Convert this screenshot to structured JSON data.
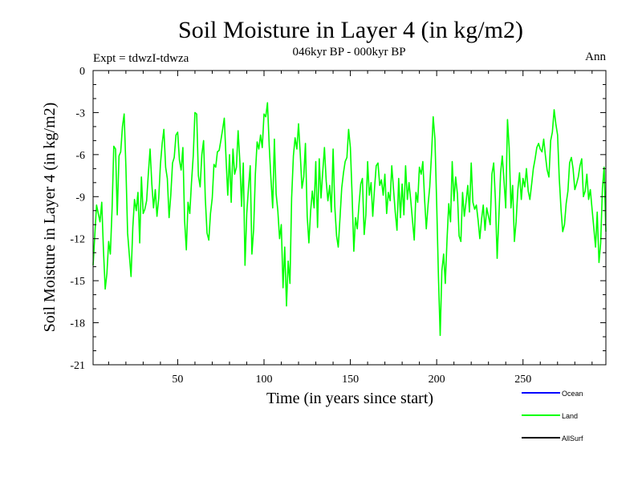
{
  "chart_data": {
    "type": "line",
    "title": "Soil Moisture in Layer 4 (in kg/m2)",
    "subtitle": "046kyr BP - 000kyr BP",
    "expt_label": "Expt = tdwzI-tdwza",
    "season_label": "Ann",
    "xlabel": "Time (in years since start)",
    "ylabel": "Soil Moisture in Layer 4 (in kg/m2)",
    "xlim": [
      1,
      298
    ],
    "ylim": [
      -21,
      0
    ],
    "x_ticks": [
      50,
      100,
      150,
      200,
      250
    ],
    "y_ticks": [
      0,
      -3,
      -6,
      -9,
      -12,
      -15,
      -18,
      -21
    ],
    "grid": false,
    "legend_position": "bottom-right",
    "series": [
      {
        "name": "Ocean",
        "color": "#0000ff",
        "points": []
      },
      {
        "name": "Land",
        "color": "#00ff00",
        "points": [
          [
            1,
            -13.9
          ],
          [
            3,
            -9.6
          ],
          [
            5,
            -10.8
          ],
          [
            6,
            -9.4
          ],
          [
            7,
            -12.8
          ],
          [
            8,
            -15.6
          ],
          [
            9,
            -14.5
          ],
          [
            10,
            -12.2
          ],
          [
            11,
            -13.1
          ],
          [
            12,
            -9.8
          ],
          [
            13,
            -5.4
          ],
          [
            14,
            -5.6
          ],
          [
            15,
            -10.3
          ],
          [
            16,
            -6.1
          ],
          [
            17,
            -5.8
          ],
          [
            18,
            -4.0
          ],
          [
            19,
            -3.1
          ],
          [
            20,
            -6.9
          ],
          [
            21,
            -11.6
          ],
          [
            22,
            -13.2
          ],
          [
            23,
            -14.7
          ],
          [
            24,
            -11.2
          ],
          [
            25,
            -9.2
          ],
          [
            26,
            -10.0
          ],
          [
            27,
            -8.7
          ],
          [
            28,
            -12.3
          ],
          [
            29,
            -7.6
          ],
          [
            30,
            -10.2
          ],
          [
            31,
            -9.9
          ],
          [
            32,
            -9.3
          ],
          [
            33,
            -7.4
          ],
          [
            34,
            -5.6
          ],
          [
            35,
            -8.1
          ],
          [
            36,
            -9.8
          ],
          [
            37,
            -8.5
          ],
          [
            38,
            -10.4
          ],
          [
            39,
            -9.1
          ],
          [
            40,
            -6.7
          ],
          [
            41,
            -5.2
          ],
          [
            42,
            -4.2
          ],
          [
            43,
            -6.9
          ],
          [
            44,
            -7.7
          ],
          [
            45,
            -10.5
          ],
          [
            46,
            -8.9
          ],
          [
            47,
            -6.6
          ],
          [
            48,
            -6.2
          ],
          [
            49,
            -4.6
          ],
          [
            50,
            -4.4
          ],
          [
            51,
            -6.4
          ],
          [
            52,
            -7.1
          ],
          [
            53,
            -5.5
          ],
          [
            54,
            -10.7
          ],
          [
            55,
            -12.8
          ],
          [
            56,
            -9.4
          ],
          [
            57,
            -10.2
          ],
          [
            58,
            -8.0
          ],
          [
            59,
            -6.1
          ],
          [
            60,
            -3.0
          ],
          [
            61,
            -3.1
          ],
          [
            62,
            -7.5
          ],
          [
            63,
            -8.3
          ],
          [
            64,
            -6.0
          ],
          [
            65,
            -5.0
          ],
          [
            66,
            -9.1
          ],
          [
            67,
            -11.6
          ],
          [
            68,
            -12.1
          ],
          [
            69,
            -10.2
          ],
          [
            70,
            -9.1
          ],
          [
            71,
            -6.7
          ],
          [
            72,
            -6.9
          ],
          [
            73,
            -5.8
          ],
          [
            74,
            -5.7
          ],
          [
            75,
            -5.0
          ],
          [
            76,
            -4.2
          ],
          [
            77,
            -3.4
          ],
          [
            78,
            -6.3
          ],
          [
            79,
            -8.9
          ],
          [
            80,
            -6.0
          ],
          [
            81,
            -9.4
          ],
          [
            82,
            -5.6
          ],
          [
            83,
            -7.4
          ],
          [
            84,
            -6.9
          ],
          [
            85,
            -4.3
          ],
          [
            86,
            -6.5
          ],
          [
            87,
            -9.7
          ],
          [
            88,
            -6.6
          ],
          [
            89,
            -13.9
          ],
          [
            90,
            -10.2
          ],
          [
            91,
            -8.4
          ],
          [
            92,
            -6.8
          ],
          [
            93,
            -13.1
          ],
          [
            94,
            -11.3
          ],
          [
            95,
            -7.4
          ],
          [
            96,
            -5.1
          ],
          [
            97,
            -5.6
          ],
          [
            98,
            -4.6
          ],
          [
            99,
            -5.5
          ],
          [
            100,
            -3.1
          ],
          [
            101,
            -3.3
          ],
          [
            102,
            -2.3
          ],
          [
            103,
            -5.4
          ],
          [
            104,
            -7.7
          ],
          [
            105,
            -9.8
          ],
          [
            106,
            -4.9
          ],
          [
            107,
            -8.8
          ],
          [
            108,
            -10.0
          ],
          [
            109,
            -12.0
          ],
          [
            110,
            -11.0
          ],
          [
            111,
            -15.5
          ],
          [
            112,
            -12.6
          ],
          [
            113,
            -16.8
          ],
          [
            114,
            -13.6
          ],
          [
            115,
            -15.2
          ],
          [
            116,
            -9.1
          ],
          [
            117,
            -6.1
          ],
          [
            118,
            -4.8
          ],
          [
            119,
            -5.6
          ],
          [
            120,
            -3.8
          ],
          [
            121,
            -6.0
          ],
          [
            122,
            -8.4
          ],
          [
            123,
            -7.6
          ],
          [
            124,
            -5.2
          ],
          [
            125,
            -10.4
          ],
          [
            126,
            -12.3
          ],
          [
            127,
            -10.0
          ],
          [
            128,
            -8.6
          ],
          [
            129,
            -9.8
          ],
          [
            130,
            -6.5
          ],
          [
            131,
            -11.2
          ],
          [
            132,
            -6.3
          ],
          [
            133,
            -9.1
          ],
          [
            134,
            -7.2
          ],
          [
            135,
            -5.5
          ],
          [
            136,
            -7.9
          ],
          [
            137,
            -9.3
          ],
          [
            138,
            -8.2
          ],
          [
            139,
            -10.1
          ],
          [
            140,
            -5.6
          ],
          [
            141,
            -9.7
          ],
          [
            142,
            -11.8
          ],
          [
            143,
            -12.6
          ],
          [
            144,
            -10.5
          ],
          [
            145,
            -8.4
          ],
          [
            146,
            -7.3
          ],
          [
            147,
            -6.5
          ],
          [
            148,
            -6.2
          ],
          [
            149,
            -4.2
          ],
          [
            150,
            -5.5
          ],
          [
            151,
            -8.8
          ],
          [
            152,
            -12.9
          ],
          [
            153,
            -10.5
          ],
          [
            154,
            -11.3
          ],
          [
            155,
            -9.6
          ],
          [
            156,
            -8.1
          ],
          [
            157,
            -7.7
          ],
          [
            158,
            -11.7
          ],
          [
            159,
            -10.3
          ],
          [
            160,
            -6.5
          ],
          [
            161,
            -8.9
          ],
          [
            162,
            -8.0
          ],
          [
            163,
            -10.4
          ],
          [
            164,
            -8.4
          ],
          [
            165,
            -6.8
          ],
          [
            166,
            -6.6
          ],
          [
            167,
            -8.2
          ],
          [
            168,
            -7.8
          ],
          [
            169,
            -8.9
          ],
          [
            170,
            -7.4
          ],
          [
            171,
            -10.2
          ],
          [
            172,
            -8.7
          ],
          [
            173,
            -9.3
          ],
          [
            174,
            -6.8
          ],
          [
            175,
            -8.5
          ],
          [
            176,
            -10.1
          ],
          [
            177,
            -11.4
          ],
          [
            178,
            -7.7
          ],
          [
            179,
            -10.5
          ],
          [
            180,
            -8.1
          ],
          [
            181,
            -10.3
          ],
          [
            182,
            -6.8
          ],
          [
            183,
            -9.2
          ],
          [
            184,
            -8.0
          ],
          [
            185,
            -9.3
          ],
          [
            186,
            -10.7
          ],
          [
            187,
            -12.1
          ],
          [
            188,
            -8.7
          ],
          [
            189,
            -9.4
          ],
          [
            190,
            -6.9
          ],
          [
            191,
            -7.4
          ],
          [
            192,
            -6.5
          ],
          [
            193,
            -9.2
          ],
          [
            194,
            -11.3
          ],
          [
            195,
            -9.6
          ],
          [
            196,
            -8.3
          ],
          [
            197,
            -6.0
          ],
          [
            198,
            -3.3
          ],
          [
            199,
            -4.9
          ],
          [
            200,
            -9.6
          ],
          [
            201,
            -14.6
          ],
          [
            202,
            -18.9
          ],
          [
            203,
            -14.3
          ],
          [
            204,
            -13.1
          ],
          [
            205,
            -15.2
          ],
          [
            206,
            -12.0
          ],
          [
            207,
            -9.5
          ],
          [
            208,
            -10.8
          ],
          [
            209,
            -6.5
          ],
          [
            210,
            -9.3
          ],
          [
            211,
            -7.6
          ],
          [
            212,
            -8.8
          ],
          [
            213,
            -11.8
          ],
          [
            214,
            -12.2
          ],
          [
            215,
            -8.7
          ],
          [
            216,
            -10.4
          ],
          [
            217,
            -9.4
          ],
          [
            218,
            -8.2
          ],
          [
            219,
            -10.1
          ],
          [
            220,
            -6.6
          ],
          [
            221,
            -9.4
          ],
          [
            222,
            -9.9
          ],
          [
            223,
            -9.6
          ],
          [
            224,
            -10.7
          ],
          [
            225,
            -12.0
          ],
          [
            226,
            -10.6
          ],
          [
            227,
            -9.6
          ],
          [
            228,
            -11.4
          ],
          [
            229,
            -9.8
          ],
          [
            230,
            -10.4
          ],
          [
            231,
            -11.0
          ],
          [
            232,
            -7.4
          ],
          [
            233,
            -6.6
          ],
          [
            234,
            -9.2
          ],
          [
            235,
            -13.4
          ],
          [
            236,
            -10.5
          ],
          [
            237,
            -7.3
          ],
          [
            238,
            -6.1
          ],
          [
            239,
            -7.9
          ],
          [
            240,
            -9.8
          ],
          [
            241,
            -3.5
          ],
          [
            242,
            -5.5
          ],
          [
            243,
            -9.8
          ],
          [
            244,
            -8.2
          ],
          [
            245,
            -12.2
          ],
          [
            246,
            -10.8
          ],
          [
            247,
            -8.5
          ],
          [
            248,
            -7.3
          ],
          [
            249,
            -9.2
          ],
          [
            250,
            -7.7
          ],
          [
            251,
            -8.3
          ],
          [
            252,
            -7.0
          ],
          [
            253,
            -8.6
          ],
          [
            254,
            -9.2
          ],
          [
            255,
            -8.1
          ],
          [
            256,
            -7.0
          ],
          [
            257,
            -6.3
          ],
          [
            258,
            -5.5
          ],
          [
            259,
            -5.2
          ],
          [
            260,
            -5.6
          ],
          [
            261,
            -5.8
          ],
          [
            262,
            -4.9
          ],
          [
            263,
            -6.1
          ],
          [
            264,
            -7.1
          ],
          [
            265,
            -7.6
          ],
          [
            266,
            -5.0
          ],
          [
            267,
            -4.4
          ],
          [
            268,
            -2.8
          ],
          [
            269,
            -3.8
          ],
          [
            270,
            -4.6
          ],
          [
            271,
            -7.7
          ],
          [
            272,
            -9.9
          ],
          [
            273,
            -11.5
          ],
          [
            274,
            -11.0
          ],
          [
            275,
            -9.5
          ],
          [
            276,
            -8.6
          ],
          [
            277,
            -6.6
          ],
          [
            278,
            -6.2
          ],
          [
            279,
            -7.0
          ],
          [
            280,
            -8.5
          ],
          [
            281,
            -8.1
          ],
          [
            282,
            -7.6
          ],
          [
            283,
            -6.8
          ],
          [
            284,
            -6.3
          ],
          [
            285,
            -9.0
          ],
          [
            286,
            -8.6
          ],
          [
            287,
            -7.4
          ],
          [
            288,
            -9.2
          ],
          [
            289,
            -8.5
          ],
          [
            290,
            -9.9
          ],
          [
            291,
            -11.2
          ],
          [
            292,
            -12.6
          ],
          [
            293,
            -10.1
          ],
          [
            294,
            -13.7
          ],
          [
            295,
            -12.3
          ],
          [
            296,
            -8.4
          ],
          [
            297,
            -6.9
          ],
          [
            298,
            -11.5
          ]
        ]
      },
      {
        "name": "AllSurf",
        "color": "#000000",
        "points": []
      }
    ]
  }
}
